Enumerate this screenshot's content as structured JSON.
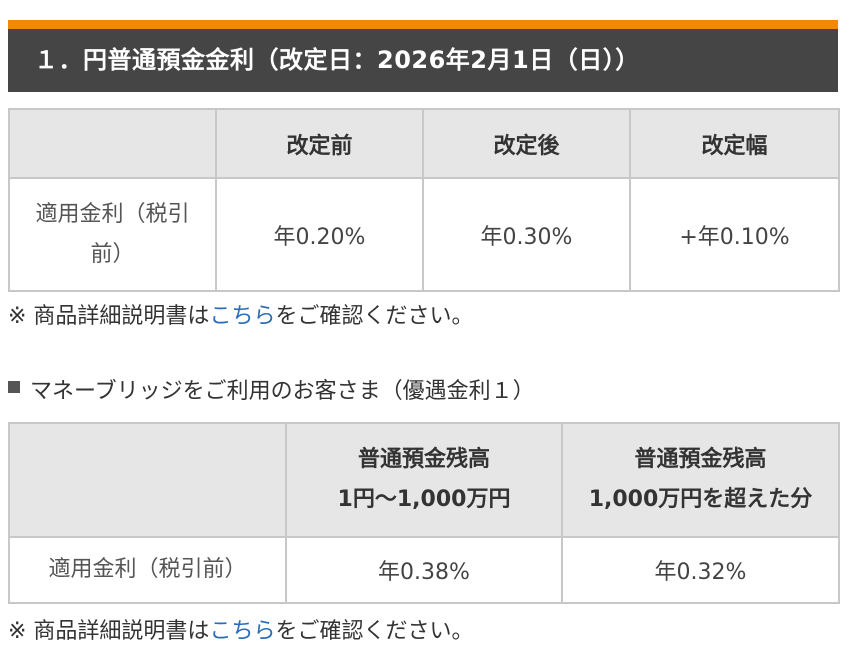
{
  "section": {
    "title": "１．円普通預金金利（改定日：2026年2月1日（日））"
  },
  "table1": {
    "headers": [
      "",
      "改定前",
      "改定後",
      "改定幅"
    ],
    "row_label": "適用金利（税引前）",
    "values": [
      "年0.20%",
      "年0.30%",
      "+年0.10%"
    ]
  },
  "note1": {
    "prefix": "※ 商品詳細説明書は",
    "link": "こちら",
    "suffix": "をご確認ください。"
  },
  "subheading": {
    "icon": "square-bullet-icon",
    "text": "マネーブリッジをご利用のお客さま（優遇金利１）"
  },
  "table2": {
    "headers": [
      "",
      {
        "line1": "普通預金残高",
        "line2": "1円〜1,000万円"
      },
      {
        "line1": "普通預金残高",
        "line2": "1,000万円を超えた分"
      }
    ],
    "row_label": "適用金利（税引前）",
    "values": [
      "年0.38%",
      "年0.32%"
    ]
  },
  "note2": {
    "prefix": "※ 商品詳細説明書は",
    "link": "こちら",
    "suffix": "をご確認ください。"
  },
  "colors": {
    "accent_bar": "#f08a00",
    "header_bg": "#454545",
    "table_header_bg": "#e6e6e6",
    "link": "#2a6db5"
  }
}
